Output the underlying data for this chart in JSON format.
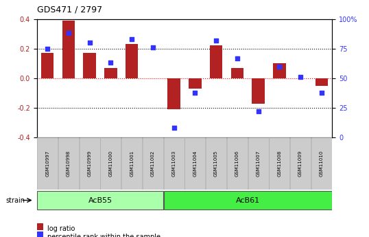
{
  "title": "GDS471 / 2797",
  "samples": [
    "GSM10997",
    "GSM10998",
    "GSM10999",
    "GSM11000",
    "GSM11001",
    "GSM11002",
    "GSM11003",
    "GSM11004",
    "GSM11005",
    "GSM11006",
    "GSM11007",
    "GSM11008",
    "GSM11009",
    "GSM11010"
  ],
  "log_ratio": [
    0.17,
    0.39,
    0.17,
    0.07,
    0.23,
    0.0,
    -0.21,
    -0.07,
    0.22,
    0.07,
    -0.17,
    0.1,
    0.0,
    -0.05
  ],
  "percentile": [
    75,
    88,
    80,
    63,
    83,
    76,
    8,
    38,
    82,
    67,
    22,
    60,
    51,
    38
  ],
  "ylim": [
    -0.4,
    0.4
  ],
  "y2lim": [
    0,
    100
  ],
  "yticks": [
    -0.4,
    -0.2,
    0.0,
    0.2,
    0.4
  ],
  "y2ticks": [
    0,
    25,
    50,
    75,
    100
  ],
  "y2ticklabels": [
    "0",
    "25",
    "50",
    "75",
    "100%"
  ],
  "bar_color": "#b22222",
  "dot_color": "#3333ff",
  "acb55_color": "#aaffaa",
  "acb61_color": "#44ee44",
  "strain_groups": [
    {
      "label": "AcB55",
      "start": 0,
      "end": 5
    },
    {
      "label": "AcB61",
      "start": 6,
      "end": 13
    }
  ],
  "strain_label": "strain",
  "legend_items": [
    {
      "label": "log ratio",
      "color": "#b22222"
    },
    {
      "label": "percentile rank within the sample",
      "color": "#3333ff"
    }
  ],
  "bg_color": "#ffffff",
  "label_box_color": "#cccccc",
  "label_box_edge": "#aaaaaa"
}
